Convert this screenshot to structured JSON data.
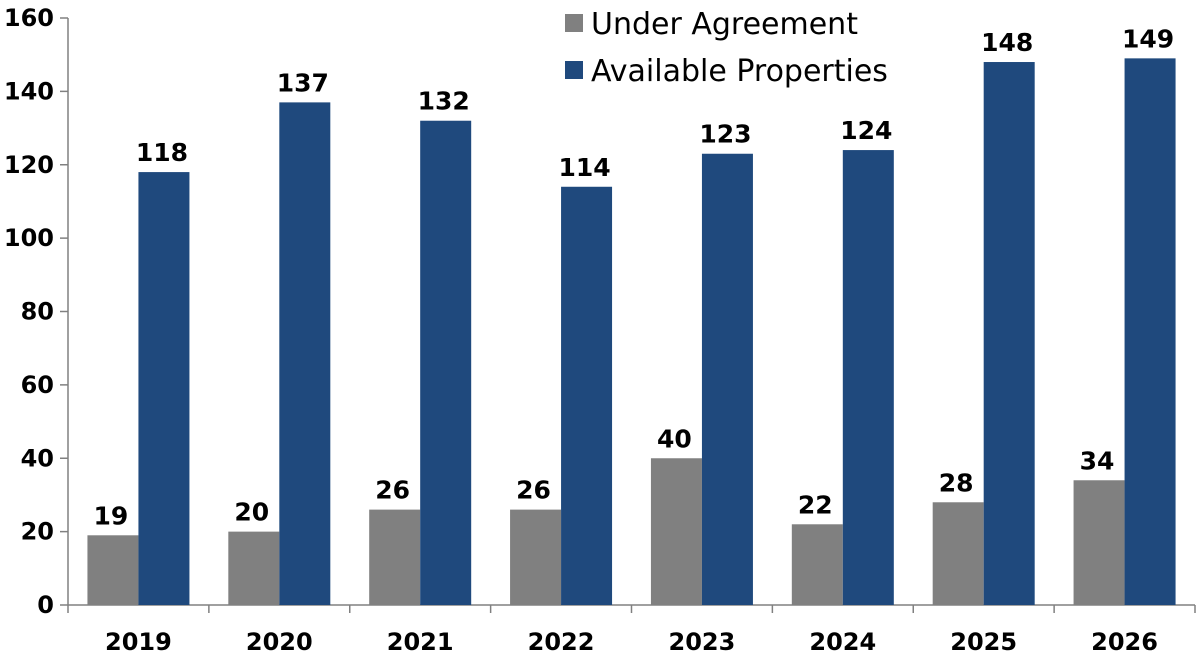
{
  "chart_data": {
    "type": "bar",
    "categories": [
      "2019",
      "2020",
      "2021",
      "2022",
      "2023",
      "2024",
      "2025",
      "2026"
    ],
    "series": [
      {
        "name": "Under Agreement",
        "values": [
          19,
          20,
          26,
          26,
          40,
          22,
          28,
          34
        ],
        "color": "#808080"
      },
      {
        "name": "Available Properties",
        "values": [
          118,
          137,
          132,
          114,
          123,
          124,
          148,
          149
        ],
        "color": "#1F497D"
      }
    ],
    "ylim": [
      0,
      160
    ],
    "yticks": [
      0,
      20,
      40,
      60,
      80,
      100,
      120,
      140,
      160
    ],
    "grid": false,
    "legend_position": "top-center"
  }
}
